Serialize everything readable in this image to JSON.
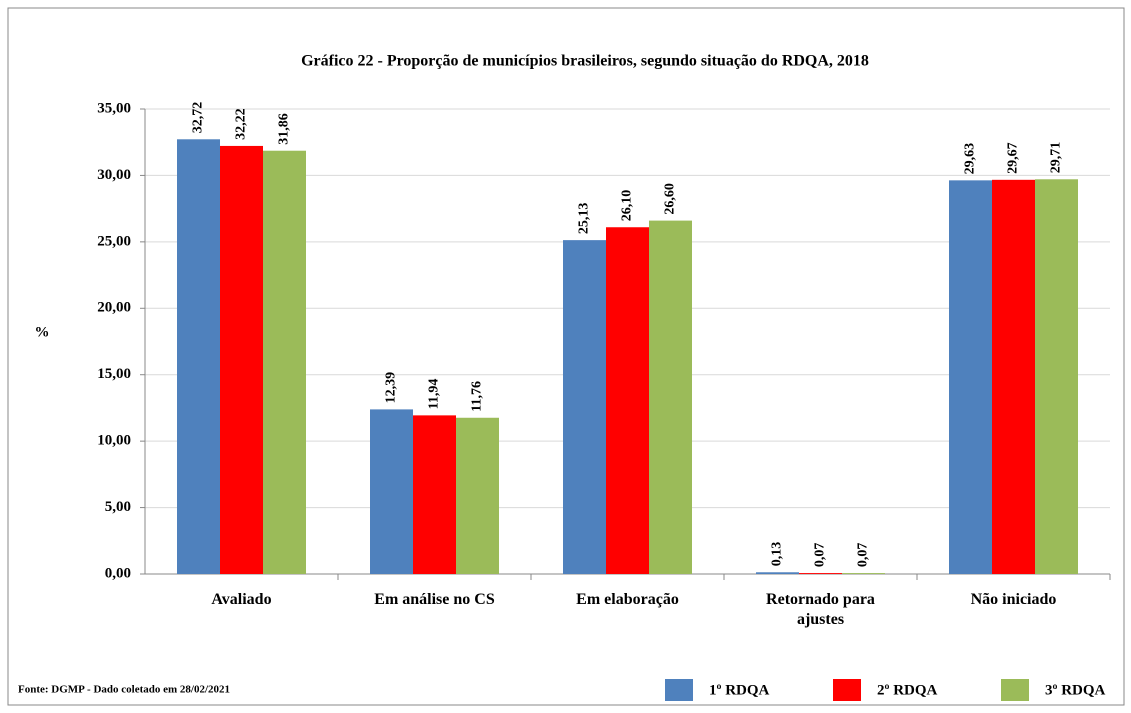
{
  "chart_data": {
    "type": "bar",
    "title": "Gráfico 22 - Proporção  de municípios brasileiros,   segundo situação do RDQA, 2018",
    "ylabel": "%",
    "source": "Fonte: DGMP - Dado coletado em 28/02/2021",
    "categories": [
      "Avaliado",
      "Em análise no CS",
      "Em elaboração",
      "Retornado para ajustes",
      "Não iniciado"
    ],
    "series": [
      {
        "name": "1º RDQA",
        "color": "#4f81bd",
        "values": [
          32.72,
          12.39,
          25.13,
          0.13,
          29.63
        ],
        "value_labels": [
          "32,72",
          "12,39",
          "25,13",
          "0,13",
          "29,63"
        ]
      },
      {
        "name": "2º RDQA",
        "color": "#ff0000",
        "values": [
          32.22,
          11.94,
          26.1,
          0.07,
          29.67
        ],
        "value_labels": [
          "32,22",
          "11,94",
          "26,10",
          "0,07",
          "29,67"
        ]
      },
      {
        "name": "3º RDQA",
        "color": "#9bbb59",
        "values": [
          31.86,
          11.76,
          26.6,
          0.07,
          29.71
        ],
        "value_labels": [
          "31,86",
          "11,76",
          "26,60",
          "0,07",
          "29,71"
        ]
      }
    ],
    "ylim": [
      0,
      35
    ],
    "yticks": [
      {
        "value": 0,
        "label": "0,00"
      },
      {
        "value": 5,
        "label": "5,00"
      },
      {
        "value": 10,
        "label": "10,00"
      },
      {
        "value": 15,
        "label": "15,00"
      },
      {
        "value": 20,
        "label": "20,00"
      },
      {
        "value": 25,
        "label": "25,00"
      },
      {
        "value": 30,
        "label": "30,00"
      },
      {
        "value": 35,
        "label": "35,00"
      }
    ],
    "grid": true,
    "legend": "bottom-right"
  }
}
